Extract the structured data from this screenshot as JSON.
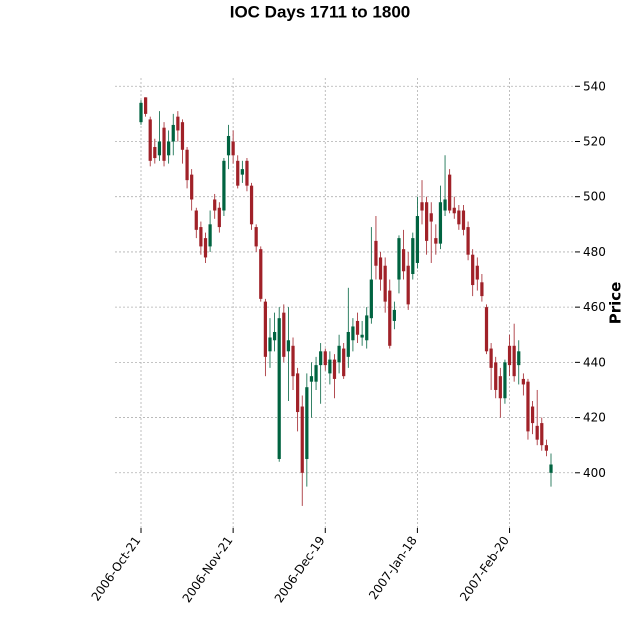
{
  "chart_data": {
    "type": "candlestick",
    "title": "IOC Days 1711 to 1800",
    "ylabel": "Price",
    "categories": [
      "2006-Oct-21",
      null,
      null,
      null,
      null,
      null,
      null,
      null,
      null,
      null,
      null,
      null,
      null,
      null,
      null,
      null,
      null,
      null,
      null,
      null,
      "2006-Nov-21",
      null,
      null,
      null,
      null,
      null,
      null,
      null,
      null,
      null,
      null,
      null,
      null,
      null,
      null,
      null,
      null,
      null,
      null,
      null,
      "2006-Dec-19",
      null,
      null,
      null,
      null,
      null,
      null,
      null,
      null,
      null,
      null,
      null,
      null,
      null,
      null,
      null,
      null,
      null,
      null,
      null,
      "2007-Jan-18",
      null,
      null,
      null,
      null,
      null,
      null,
      null,
      null,
      null,
      null,
      null,
      null,
      null,
      null,
      null,
      null,
      null,
      null,
      null,
      "2007-Feb-20",
      null,
      null,
      null,
      null,
      null,
      null,
      null,
      null,
      null
    ],
    "open": [
      527,
      536,
      528,
      518,
      515,
      525,
      515,
      520,
      529,
      527,
      517,
      508,
      495,
      489,
      485,
      482,
      499,
      496,
      495,
      515,
      520,
      513,
      508,
      513,
      504,
      489,
      481,
      462,
      444,
      448,
      405,
      458,
      444,
      446,
      436,
      424,
      405,
      433,
      433,
      439,
      444,
      436,
      441,
      440,
      445,
      442,
      448,
      455,
      449,
      448,
      456,
      484,
      478,
      475,
      466,
      455,
      470,
      481,
      475,
      472,
      476,
      498,
      498,
      494,
      485,
      483,
      495,
      508,
      496,
      495,
      495,
      489,
      479,
      475,
      469,
      460,
      445,
      440,
      435,
      427,
      446,
      446,
      439,
      434,
      433,
      424,
      417,
      418,
      410,
      400
    ],
    "high": [
      535,
      536,
      529,
      521,
      531,
      527,
      524,
      530,
      531,
      528,
      518,
      510,
      496,
      491,
      487,
      495,
      501,
      498,
      514,
      526,
      524,
      515,
      513,
      514,
      505,
      490,
      482,
      463,
      456,
      458,
      460,
      461,
      460,
      449,
      438,
      428,
      436,
      440,
      442,
      447,
      445,
      444,
      443,
      450,
      447,
      467,
      456,
      458,
      455,
      460,
      489,
      493,
      480,
      478,
      470,
      462,
      486,
      488,
      480,
      487,
      500,
      506,
      500,
      498,
      490,
      504,
      515,
      510,
      500,
      497,
      497,
      491,
      481,
      478,
      472,
      461,
      447,
      442,
      438,
      441,
      450,
      454,
      448,
      436,
      434,
      426,
      430,
      420,
      412,
      407
    ],
    "low": [
      526,
      529,
      511,
      512,
      513,
      511,
      512,
      515,
      520,
      512,
      503,
      495,
      485,
      479,
      476,
      480,
      492,
      487,
      493,
      510,
      512,
      503,
      505,
      502,
      488,
      480,
      462,
      435,
      438,
      444,
      404,
      440,
      426,
      430,
      415,
      388,
      395,
      420,
      430,
      425,
      437,
      432,
      427,
      436,
      434,
      438,
      444,
      447,
      446,
      445,
      454,
      470,
      466,
      458,
      445,
      452,
      465,
      470,
      459,
      470,
      474,
      490,
      479,
      476,
      479,
      481,
      493,
      494,
      492,
      488,
      486,
      477,
      464,
      466,
      462,
      443,
      430,
      427,
      420,
      425,
      435,
      433,
      432,
      428,
      412,
      414,
      410,
      408,
      406,
      395
    ],
    "close": [
      534,
      530,
      513,
      514,
      520,
      513,
      520,
      526,
      524,
      517,
      506,
      499,
      488,
      482,
      478,
      490,
      495,
      489,
      513,
      522,
      515,
      504,
      510,
      504,
      490,
      482,
      463,
      442,
      449,
      451,
      456,
      442,
      448,
      435,
      422,
      400,
      431,
      435,
      439,
      444,
      439,
      441,
      434,
      446,
      435,
      451,
      453,
      450,
      450,
      457,
      470,
      475,
      470,
      462,
      446,
      459,
      485,
      473,
      461,
      485,
      493,
      495,
      484,
      491,
      483,
      498,
      499,
      495,
      494,
      490,
      488,
      479,
      468,
      470,
      464,
      444,
      438,
      430,
      427,
      440,
      439,
      435,
      444,
      432,
      415,
      418,
      412,
      410,
      408,
      403
    ],
    "up_color": "#006340",
    "down_color": "#a02128",
    "ylim": [
      380,
      543
    ],
    "yticks": [
      400,
      420,
      440,
      460,
      480,
      500,
      520,
      540
    ],
    "grid": true
  }
}
